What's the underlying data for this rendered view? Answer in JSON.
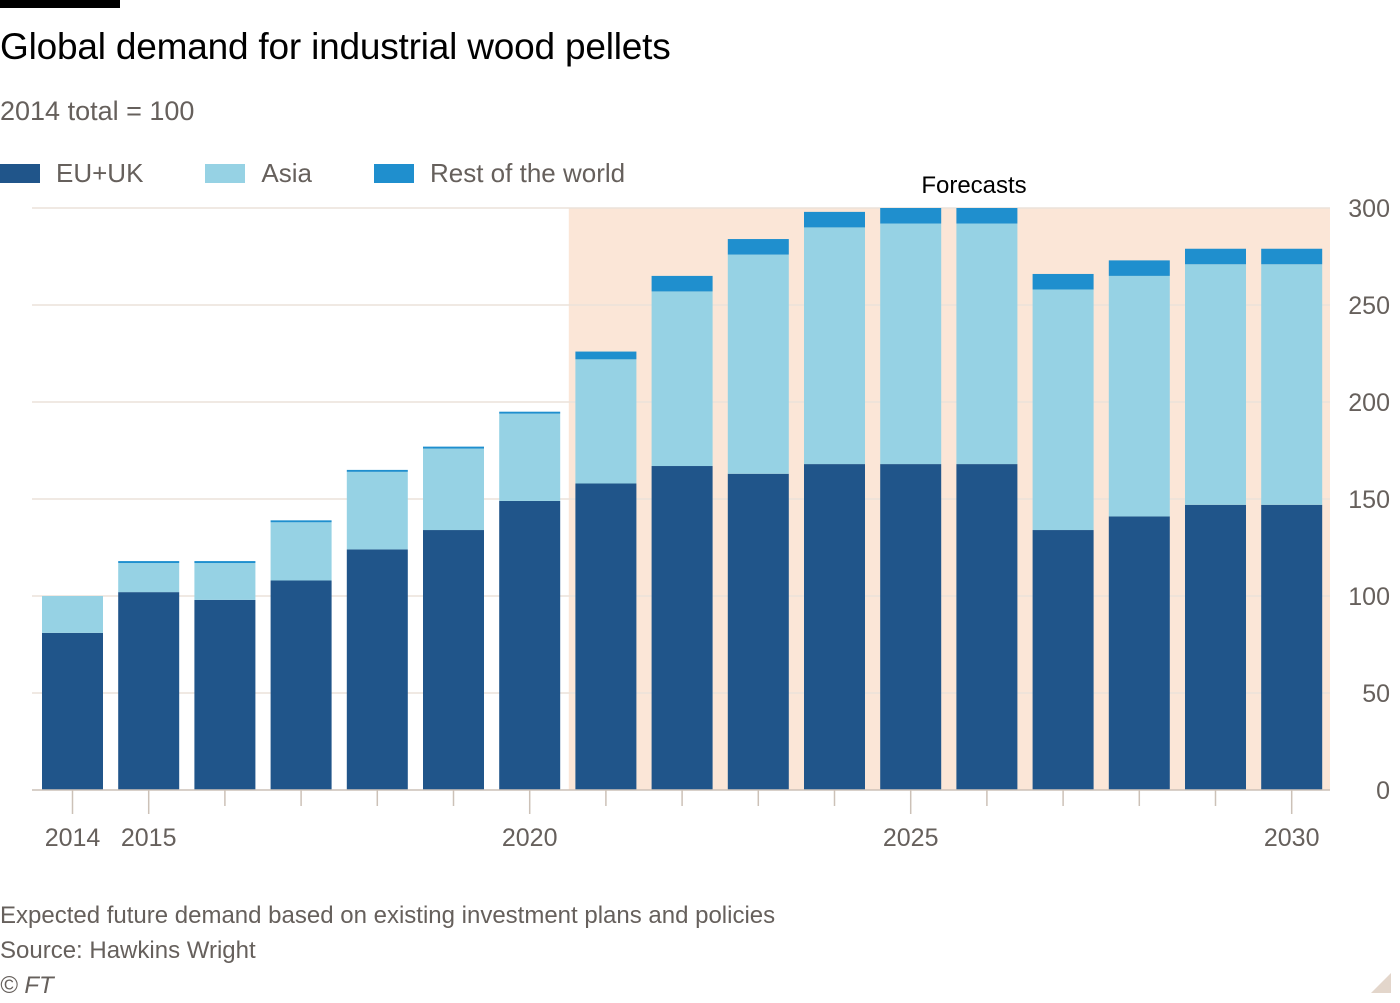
{
  "header": {
    "title": "Global demand for industrial wood pellets",
    "subtitle": "2014 total = 100"
  },
  "legend": [
    {
      "label": "EU+UK",
      "color": "#20558a"
    },
    {
      "label": "Asia",
      "color": "#96d2e4"
    },
    {
      "label": "Rest of the world",
      "color": "#1f8fce"
    }
  ],
  "annotation": {
    "forecast_label": "Forecasts",
    "forecast_from_year": 2021,
    "forecast_shade_color": "#fbe6d7"
  },
  "footer": {
    "note": "Expected future demand based on existing investment plans and policies",
    "source": "Source: Hawkins Wright",
    "copyright": "© FT"
  },
  "chart_data": {
    "type": "bar",
    "stacked": true,
    "title": "Global demand for industrial wood pellets",
    "subtitle": "2014 total = 100",
    "xlabel": "",
    "ylabel": "",
    "categories": [
      2014,
      2015,
      2016,
      2017,
      2018,
      2019,
      2020,
      2021,
      2022,
      2023,
      2024,
      2025,
      2026,
      2027,
      2028,
      2029,
      2030
    ],
    "x_tick_labels": [
      {
        "year": 2014,
        "label": "2014"
      },
      {
        "year": 2015,
        "label": "2015"
      },
      {
        "year": 2020,
        "label": "2020"
      },
      {
        "year": 2025,
        "label": "2025"
      },
      {
        "year": 2030,
        "label": "2030"
      }
    ],
    "series": [
      {
        "name": "EU+UK",
        "color": "#20558a",
        "values": [
          81,
          102,
          98,
          108,
          124,
          134,
          149,
          158,
          167,
          163,
          168,
          168,
          168,
          134,
          141,
          147,
          147
        ]
      },
      {
        "name": "Asia",
        "color": "#96d2e4",
        "values": [
          19,
          15,
          19,
          30,
          40,
          42,
          45,
          64,
          90,
          113,
          122,
          124,
          124,
          124,
          124,
          124,
          124
        ]
      },
      {
        "name": "Rest of the world",
        "color": "#1f8fce",
        "values": [
          0,
          1,
          1,
          1,
          1,
          1,
          1,
          4,
          8,
          8,
          8,
          8,
          8,
          8,
          8,
          8,
          8
        ]
      }
    ],
    "ylim": [
      0,
      300
    ],
    "y_ticks": [
      0,
      50,
      100,
      150,
      200,
      250,
      300
    ],
    "y_axis_side": "right",
    "grid": true,
    "legend_position": "top-left",
    "forecast_region": {
      "start": 2021,
      "end": 2030,
      "label": "Forecasts"
    }
  }
}
